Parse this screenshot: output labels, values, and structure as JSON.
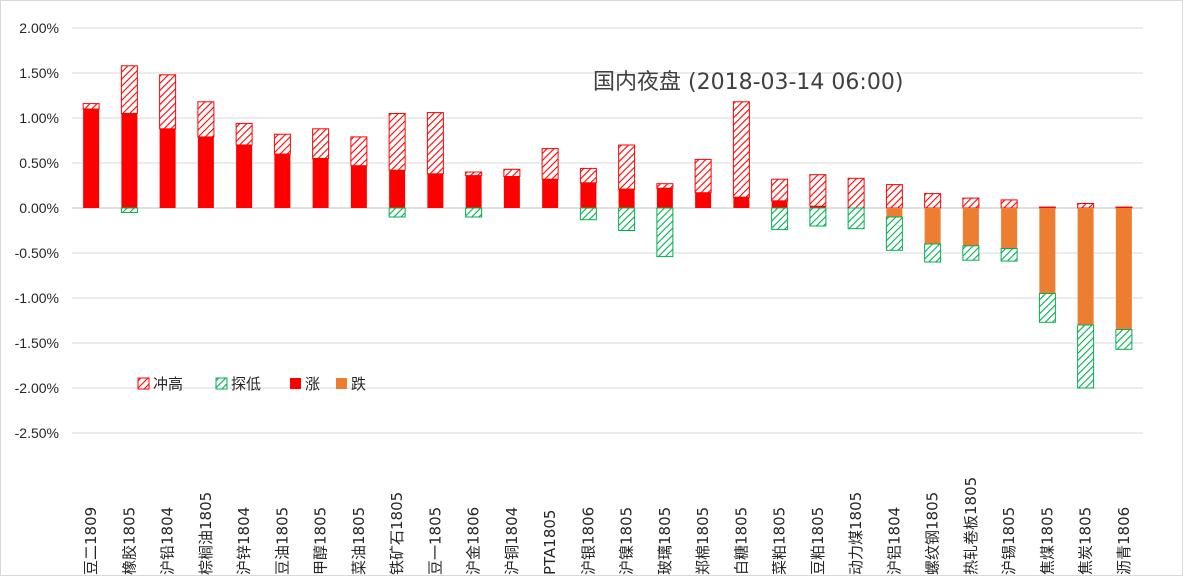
{
  "chart_data": {
    "type": "bar",
    "title": "国内夜盘 (2018-03-14 06:00)",
    "xlabel": "",
    "ylabel": "",
    "ylim": [
      -0.025,
      0.02
    ],
    "y_ticks": [
      "2.00%",
      "1.50%",
      "1.00%",
      "0.50%",
      "0.00%",
      "-0.50%",
      "-1.00%",
      "-1.50%",
      "-2.00%",
      "-2.50%"
    ],
    "grid": true,
    "legend_position": "bottom-left",
    "categories": [
      "豆二1809",
      "橡胶1805",
      "沪铅1804",
      "棕榈油1805",
      "沪锌1804",
      "豆油1805",
      "甲醇1805",
      "菜油1805",
      "铁矿石1805",
      "豆一1805",
      "沪金1806",
      "沪铜1804",
      "PTA1805",
      "沪银1806",
      "沪镍1805",
      "玻璃1805",
      "郑棉1805",
      "白糖1805",
      "菜粕1805",
      "豆粕1805",
      "动力煤1805",
      "沪铝1804",
      "螺纹钢1805",
      "热轧卷板1805",
      "沪锡1805",
      "焦煤1805",
      "焦炭1805",
      "沥青1806"
    ],
    "series": [
      {
        "name": "冲高",
        "color": "#ff0000",
        "pattern": "diagonal-hatch",
        "values": [
          0.0006,
          0.0053,
          0.006,
          0.0039,
          0.0024,
          0.0022,
          0.0033,
          0.0032,
          0.0063,
          0.0068,
          0.0004,
          0.0008,
          0.0034,
          0.0016,
          0.0049,
          0.0005,
          0.0037,
          0.0106,
          0.0024,
          0.0035,
          0.0033,
          0.0026,
          0.0016,
          0.0011,
          0.0009,
          0.0001,
          0.0005,
          0.0001
        ]
      },
      {
        "name": "探低",
        "color": "#00b050",
        "pattern": "diagonal-hatch",
        "values": [
          0,
          -0.0005,
          0,
          0,
          0,
          0,
          0,
          0,
          -0.001,
          0,
          -0.001,
          0,
          0,
          -0.0013,
          -0.0025,
          -0.0054,
          0,
          0,
          -0.0024,
          -0.002,
          -0.0023,
          -0.0037,
          -0.002,
          -0.0016,
          -0.0014,
          -0.0032,
          -0.007,
          -0.0022
        ]
      },
      {
        "name": "涨",
        "color": "#ff0000",
        "pattern": "solid",
        "values": [
          0.011,
          0.0105,
          0.0088,
          0.0079,
          0.007,
          0.006,
          0.0055,
          0.0047,
          0.0042,
          0.0038,
          0.0036,
          0.0035,
          0.0032,
          0.0028,
          0.0021,
          0.0022,
          0.0017,
          0.0012,
          0.0008,
          0.0002,
          0,
          0,
          0,
          0,
          0,
          0,
          0,
          0
        ]
      },
      {
        "name": "跌",
        "color": "#ed7d31",
        "pattern": "solid",
        "values": [
          0,
          0,
          0,
          0,
          0,
          0,
          0,
          0,
          0,
          0,
          0,
          0,
          0,
          0,
          0,
          0,
          0,
          0,
          0,
          0,
          0,
          -0.001,
          -0.004,
          -0.0042,
          -0.0045,
          -0.0095,
          -0.013,
          -0.0135
        ]
      }
    ]
  }
}
